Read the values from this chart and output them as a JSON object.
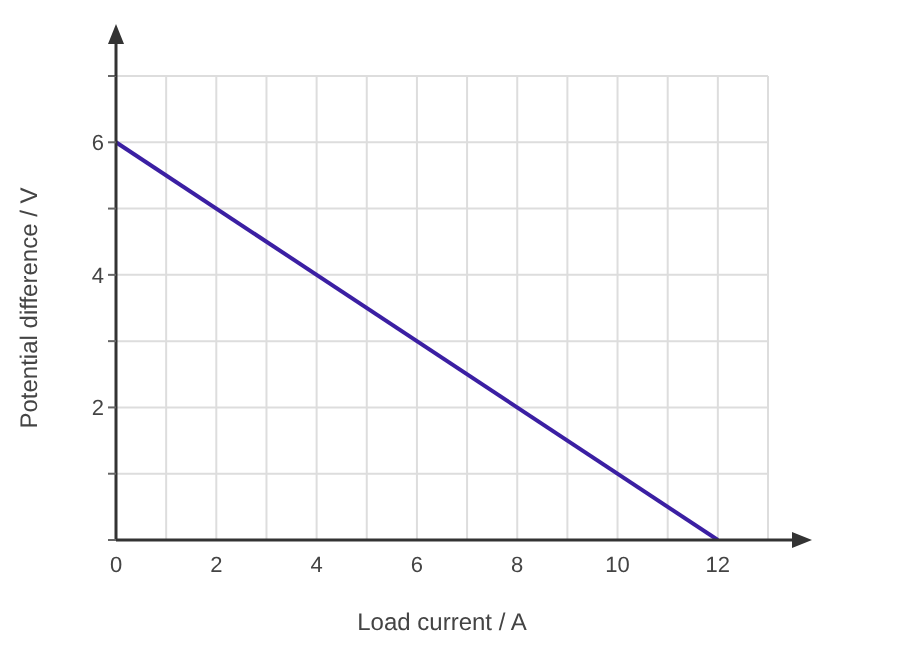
{
  "chart_data": {
    "type": "line",
    "xlabel": "Load current / A",
    "ylabel": "Potential difference / V",
    "x": [
      0,
      12
    ],
    "series": [
      {
        "color": "#3b1fa3",
        "values": [
          6,
          0
        ]
      }
    ],
    "xlim": [
      0,
      13
    ],
    "ylim": [
      0,
      7
    ],
    "xticks": [
      0,
      {
        "value": 1,
        "label": null
      },
      2,
      {
        "value": 3,
        "label": null
      },
      4,
      {
        "value": 5,
        "label": null
      },
      6,
      {
        "value": 7,
        "label": null
      },
      8,
      {
        "value": 9,
        "label": null
      },
      10,
      {
        "value": 11,
        "label": null
      },
      12,
      {
        "value": 13,
        "label": null
      }
    ],
    "yticks": [
      {
        "value": 0,
        "label": null
      },
      {
        "value": 1,
        "label": null
      },
      2,
      {
        "value": 3,
        "label": null
      },
      4,
      {
        "value": 5,
        "label": null
      },
      6,
      {
        "value": 7,
        "label": null
      }
    ],
    "grid": true,
    "marker": "none",
    "line_style": "solid"
  }
}
